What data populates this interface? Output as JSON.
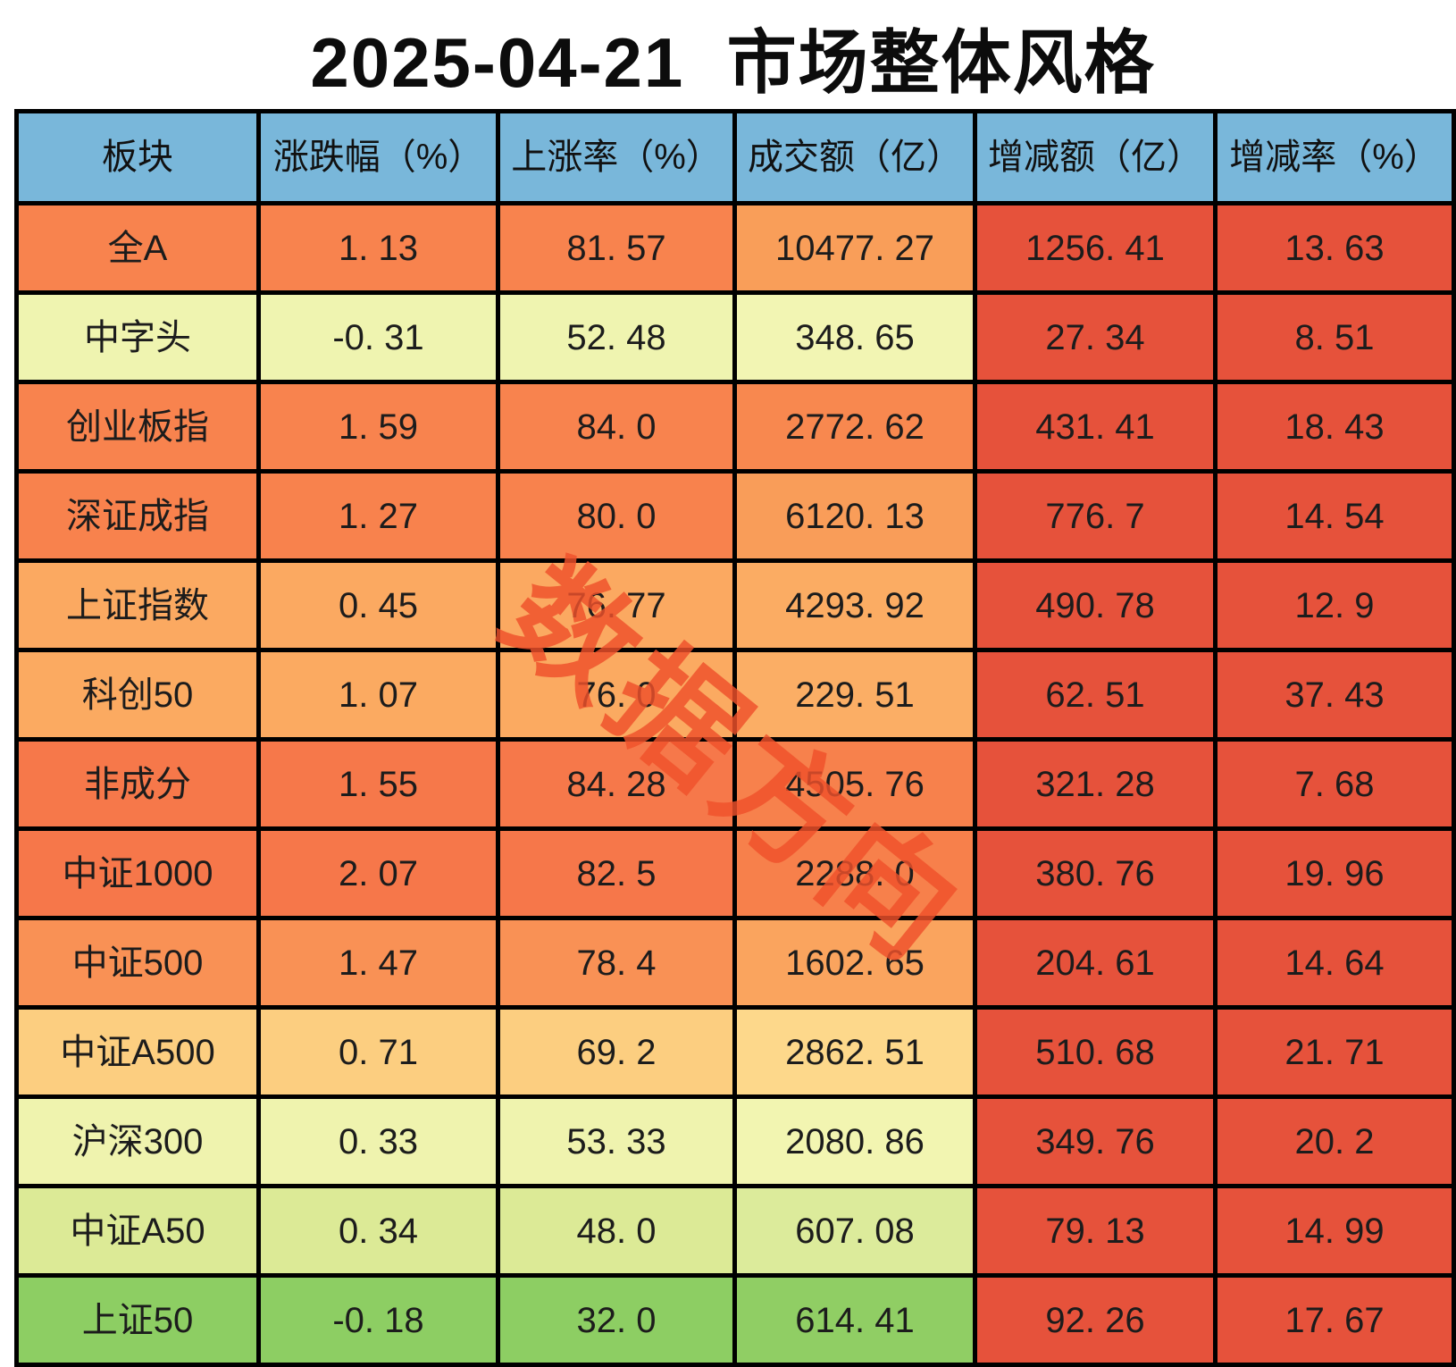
{
  "title": "2025-04-21  市场整体风格",
  "watermark": {
    "text": "数据方向",
    "color": "#f0512b"
  },
  "chart_data": {
    "type": "table",
    "title": "2025-04-21  市场整体风格",
    "header_bg": "#79b7da",
    "border_color": "#000000",
    "negative_note_color": "#e6523b",
    "columns": [
      "板块",
      "涨跌幅（%）",
      "上涨率（%）",
      "成交额（亿）",
      "增减额（亿）",
      "增减率（%）"
    ],
    "rows": [
      {
        "cells": [
          "全A",
          "1.13",
          "81.57",
          "10477.27",
          "1256.41",
          "13.63"
        ],
        "colors": [
          "#f8834e",
          "#f8834e",
          "#f8834e",
          "#f99e59",
          "#e6523b",
          "#e6523b"
        ]
      },
      {
        "cells": [
          "中字头",
          "-0.31",
          "52.48",
          "348.65",
          "27.34",
          "8.51"
        ],
        "colors": [
          "#eff4b0",
          "#eff4b0",
          "#eff4b0",
          "#f2f5b3",
          "#e6523b",
          "#e6523b"
        ]
      },
      {
        "cells": [
          "创业板指",
          "1.59",
          "84.0",
          "2772.62",
          "431.41",
          "18.43"
        ],
        "colors": [
          "#f8834e",
          "#f8834e",
          "#f8834e",
          "#f8884f",
          "#e6523b",
          "#e6523b"
        ]
      },
      {
        "cells": [
          "深证成指",
          "1.27",
          "80.0",
          "6120.13",
          "776.7",
          "14.54"
        ],
        "colors": [
          "#f8824d",
          "#f8824d",
          "#f8824d",
          "#f99d59",
          "#e6523b",
          "#e6523b"
        ]
      },
      {
        "cells": [
          "上证指数",
          "0.45",
          "76.77",
          "4293.92",
          "490.78",
          "12.9"
        ],
        "colors": [
          "#fba961",
          "#fba961",
          "#fba961",
          "#fbac63",
          "#e6523b",
          "#e6523b"
        ]
      },
      {
        "cells": [
          "科创50",
          "1.07",
          "76.0",
          "229.51",
          "62.51",
          "37.43"
        ],
        "colors": [
          "#fbaa61",
          "#fbaa61",
          "#fbaa61",
          "#fbae65",
          "#e6523b",
          "#e6523b"
        ]
      },
      {
        "cells": [
          "非成分",
          "1.55",
          "84.28",
          "4505.76",
          "321.28",
          "7.68"
        ],
        "colors": [
          "#f6784a",
          "#f6784a",
          "#f6784a",
          "#f7814c",
          "#e6523b",
          "#e6523b"
        ]
      },
      {
        "cells": [
          "中证1000",
          "2.07",
          "82.5",
          "2288.0",
          "380.76",
          "19.96"
        ],
        "colors": [
          "#f6774a",
          "#f6774a",
          "#f6774a",
          "#f7804b",
          "#e6523b",
          "#e6523b"
        ]
      },
      {
        "cells": [
          "中证500",
          "1.47",
          "78.4",
          "1602.65",
          "204.61",
          "14.64"
        ],
        "colors": [
          "#f99155",
          "#f99155",
          "#f99155",
          "#faa45e",
          "#e6523b",
          "#e6523b"
        ]
      },
      {
        "cells": [
          "中证A500",
          "0.71",
          "69.2",
          "2862.51",
          "510.68",
          "21.71"
        ],
        "colors": [
          "#fcce80",
          "#fcce80",
          "#fcce80",
          "#fdd88b",
          "#e6523b",
          "#e6523b"
        ]
      },
      {
        "cells": [
          "沪深300",
          "0.33",
          "53.33",
          "2080.86",
          "349.76",
          "20.2"
        ],
        "colors": [
          "#eff3ae",
          "#eff3ae",
          "#eff3ae",
          "#f2f5b1",
          "#e6523b",
          "#e6523b"
        ]
      },
      {
        "cells": [
          "中证A50",
          "0.34",
          "48.0",
          "607.08",
          "79.13",
          "14.99"
        ],
        "colors": [
          "#dcea96",
          "#dcea96",
          "#dcea96",
          "#dceb9b",
          "#e6523b",
          "#e6523b"
        ]
      },
      {
        "cells": [
          "上证50",
          "-0.18",
          "32.0",
          "614.41",
          "92.26",
          "17.67"
        ],
        "colors": [
          "#8dce63",
          "#8dce63",
          "#8dce63",
          "#90ce64",
          "#e6523b",
          "#e6523b"
        ]
      }
    ]
  }
}
